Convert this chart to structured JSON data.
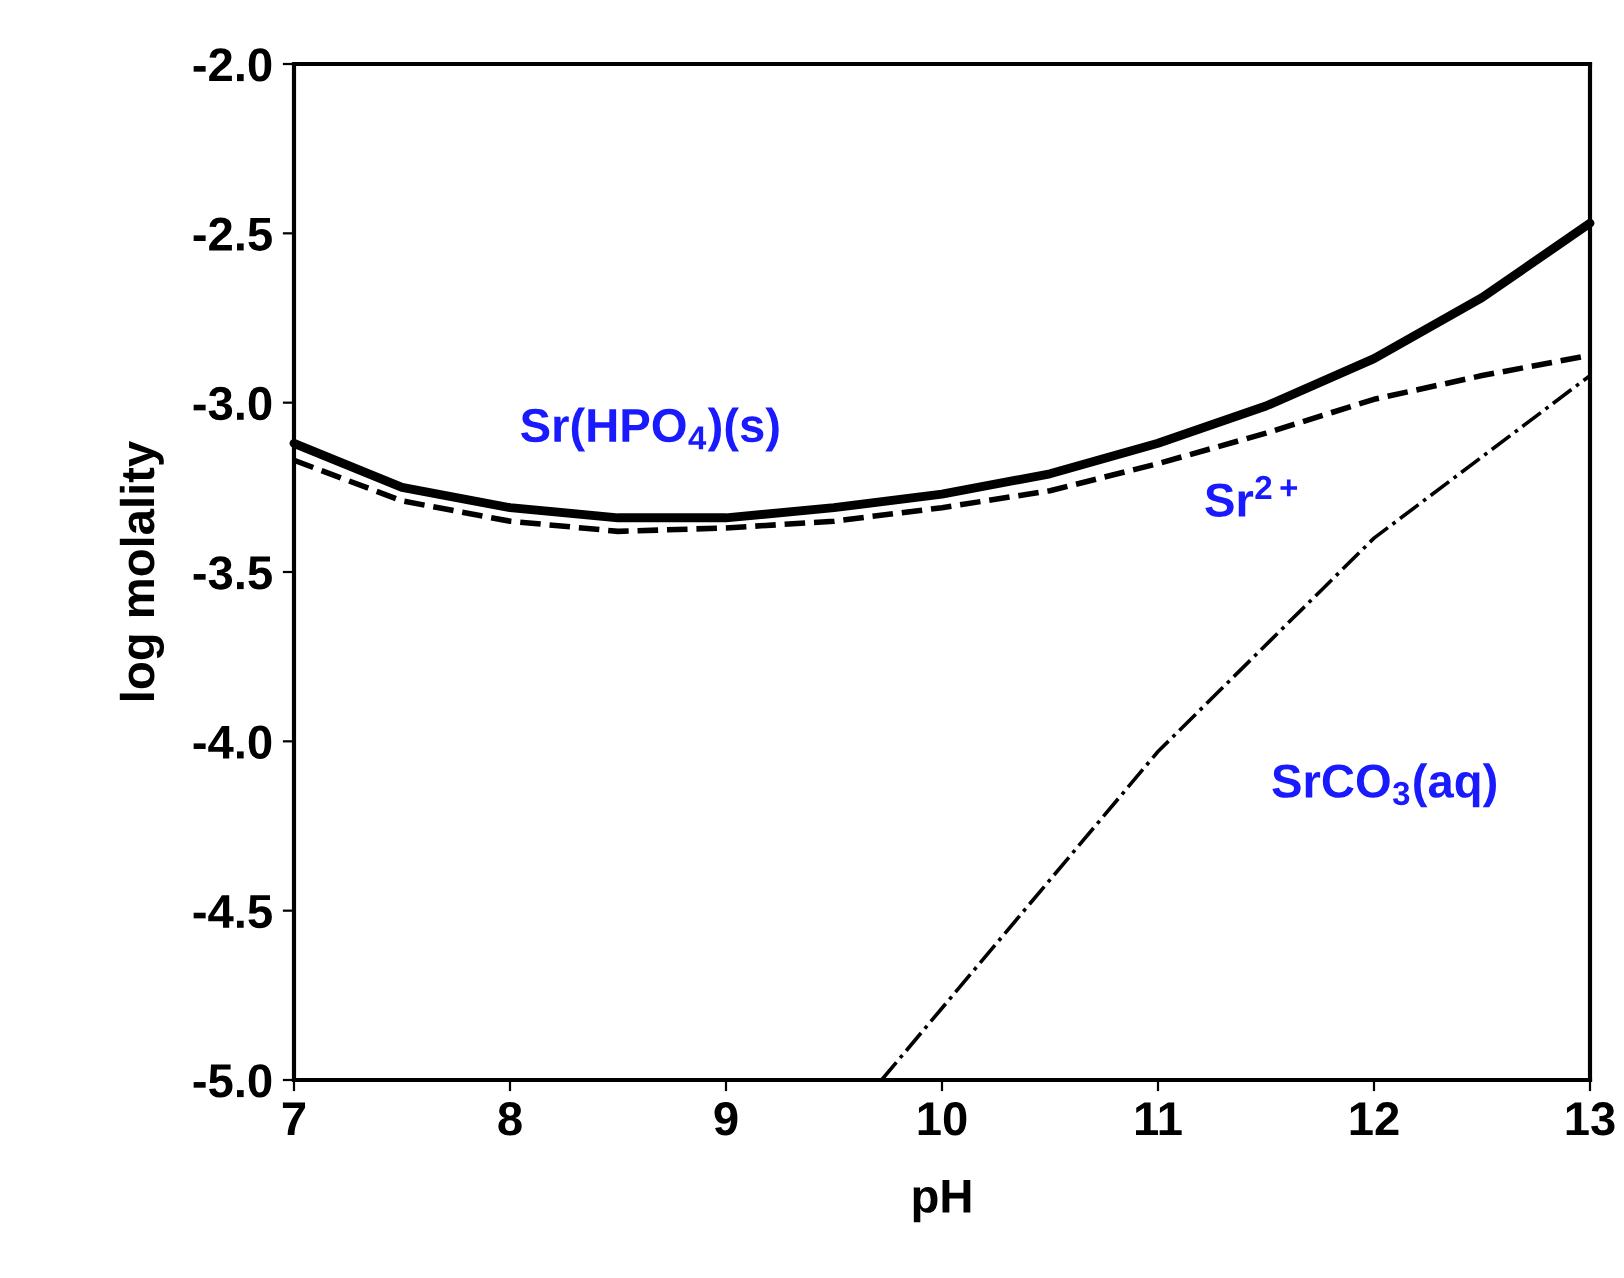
{
  "chart_data": {
    "type": "line",
    "xlabel": "pH",
    "ylabel": "log molality",
    "xlim": [
      7,
      13
    ],
    "ylim": [
      -5.0,
      -2.0
    ],
    "xticks": [
      7,
      8,
      9,
      10,
      11,
      12,
      13
    ],
    "yticks": [
      {
        "value": -5.0,
        "label": "-5.0"
      },
      {
        "value": -4.5,
        "label": "-4.5"
      },
      {
        "value": -4.0,
        "label": "-4.0"
      },
      {
        "value": -3.5,
        "label": "-3.5"
      },
      {
        "value": -3.0,
        "label": "-3.0"
      },
      {
        "value": -2.5,
        "label": "-2.5"
      },
      {
        "value": -2.0,
        "label": "-2.0"
      }
    ],
    "grid": false,
    "legend": false,
    "marker": "none",
    "series": [
      {
        "name": "Sr(HPO$_{4}$)(s)",
        "color": "#000000",
        "line_style": "solid",
        "x": [
          7,
          7.5,
          8,
          8.5,
          9,
          9.5,
          10,
          10.5,
          11,
          11.5,
          12,
          12.5,
          13
        ],
        "values": [
          -3.12,
          -3.25,
          -3.31,
          -3.34,
          -3.34,
          -3.31,
          -3.27,
          -3.21,
          -3.12,
          -3.01,
          -2.87,
          -2.69,
          -2.47
        ]
      },
      {
        "name": "Sr$^{2+}$",
        "color": "#000000",
        "line_style": "dashed",
        "x": [
          7,
          7.5,
          8,
          8.5,
          9,
          9.5,
          10,
          10.5,
          11,
          11.5,
          12,
          12.5,
          13
        ],
        "values": [
          -3.17,
          -3.29,
          -3.35,
          -3.38,
          -3.37,
          -3.35,
          -3.31,
          -3.26,
          -3.18,
          -3.09,
          -2.99,
          -2.92,
          -2.86
        ]
      },
      {
        "name": "SrCO$_{3}$(aq)",
        "color": "#000000",
        "line_style": "dashdot",
        "x": [
          9.72,
          11,
          12,
          13
        ],
        "values": [
          -5.0,
          -4.03,
          -3.4,
          -2.92
        ]
      }
    ]
  }
}
